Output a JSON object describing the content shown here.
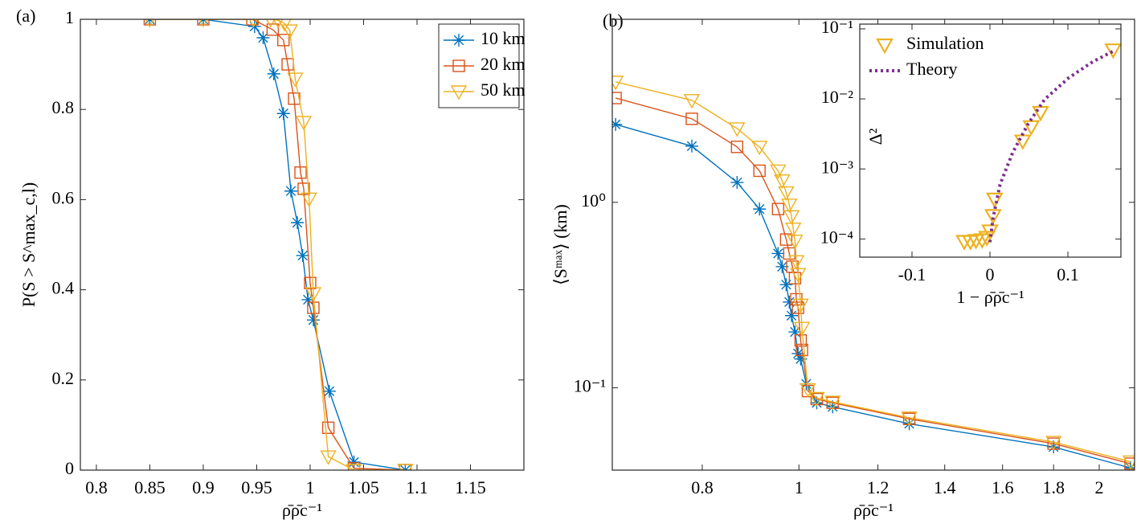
{
  "chart_data": [
    {
      "type": "line",
      "title": "(a)",
      "xlabel": "ρ̄ρ̄c⁻¹",
      "ylabel": "P(S > S^max_c,l)",
      "xlim": [
        0.785,
        1.2
      ],
      "ylim": [
        0,
        1
      ],
      "xticks": [
        0.8,
        0.85,
        0.9,
        0.95,
        1,
        1.05,
        1.1,
        1.15
      ],
      "yticks": [
        0,
        0.2,
        0.4,
        0.6,
        0.8,
        1
      ],
      "legend": "upper right",
      "series": [
        {
          "name": "10 km",
          "color": "#0072bd",
          "marker": "asterisk",
          "linestyle": "solid",
          "x": [
            0.85,
            0.9,
            0.948,
            0.956,
            0.966,
            0.975,
            0.982,
            0.988,
            0.993,
            0.998,
            1.003,
            1.018,
            1.041,
            1.089
          ],
          "values": [
            1,
            1,
            0.984,
            0.959,
            0.879,
            0.791,
            0.619,
            0.549,
            0.476,
            0.378,
            0.333,
            0.175,
            0.018,
            0
          ]
        },
        {
          "name": "20 km",
          "color": "#d95319",
          "marker": "square",
          "linestyle": "solid",
          "x": [
            0.85,
            0.9,
            0.946,
            0.965,
            0.975,
            0.979,
            0.985,
            0.991,
            0.994,
            1.0,
            1.003,
            1.017,
            1.041,
            1.089
          ],
          "values": [
            1,
            1,
            1,
            0.977,
            0.954,
            0.9,
            0.824,
            0.66,
            0.624,
            0.415,
            0.36,
            0.094,
            0.004,
            0
          ]
        },
        {
          "name": "50 km",
          "color": "#edb120",
          "marker": "triangle",
          "linestyle": "solid",
          "x": [
            0.85,
            0.9,
            0.947,
            0.963,
            0.97,
            0.976,
            0.981,
            0.986,
            0.994,
            0.999,
            1.003,
            1.017,
            1.041,
            1.089
          ],
          "values": [
            1,
            1,
            1,
            1,
            0.998,
            0.991,
            0.975,
            0.868,
            0.772,
            0.602,
            0.392,
            0.03,
            0,
            0
          ]
        }
      ]
    },
    {
      "type": "line",
      "title": "(b)",
      "xlabel": "ρ̄ρ̄c⁻¹",
      "ylabel": "⟨Sᵐᵃˣ⟩ (km)",
      "xscale": "log",
      "yscale": "log",
      "xlim": [
        0.65,
        2.17
      ],
      "ylim": [
        0.036,
        9.7
      ],
      "xticks": [
        0.8,
        1,
        1.2,
        1.4,
        1.6,
        1.8,
        2
      ],
      "yticks": [
        {
          "value": 0.1,
          "label": "10⁻¹"
        },
        {
          "value": 1,
          "label": "10⁰"
        }
      ],
      "series": [
        {
          "name": "10 km",
          "color": "#0072bd",
          "marker": "asterisk",
          "linestyle": "solid",
          "x": [
            0.655,
            0.781,
            0.867,
            0.913,
            0.953,
            0.962,
            0.971,
            0.978,
            0.983,
            0.991,
            0.998,
            1.004,
            1.017,
            1.042,
            1.081,
            1.29,
            1.8,
            2.15
          ],
          "values": [
            2.63,
            2.01,
            1.28,
            0.92,
            0.53,
            0.45,
            0.36,
            0.29,
            0.245,
            0.2,
            0.153,
            0.143,
            0.105,
            0.083,
            0.079,
            0.064,
            0.048,
            0.037
          ]
        },
        {
          "name": "20 km",
          "color": "#d95319",
          "marker": "square",
          "linestyle": "solid",
          "x": [
            0.655,
            0.781,
            0.867,
            0.913,
            0.953,
            0.971,
            0.978,
            0.985,
            0.991,
            0.994,
            0.998,
            1.004,
            1.007,
            1.021,
            1.042,
            1.081,
            1.29,
            1.8,
            2.15
          ],
          "values": [
            3.65,
            2.82,
            1.99,
            1.48,
            0.92,
            0.63,
            0.53,
            0.45,
            0.39,
            0.3,
            0.27,
            0.18,
            0.16,
            0.096,
            0.087,
            0.083,
            0.068,
            0.05,
            0.039
          ]
        },
        {
          "name": "50 km",
          "color": "#edb120",
          "marker": "triangle",
          "linestyle": "solid",
          "x": [
            0.655,
            0.781,
            0.867,
            0.913,
            0.953,
            0.962,
            0.971,
            0.978,
            0.983,
            0.987,
            0.991,
            0.994,
            0.998,
            1.004,
            1.007,
            1.021,
            1.042,
            1.081,
            1.29,
            1.8,
            2.15
          ],
          "values": [
            4.46,
            3.55,
            2.5,
            1.99,
            1.48,
            1.31,
            1.13,
            0.97,
            0.84,
            0.72,
            0.62,
            0.48,
            0.41,
            0.28,
            0.21,
            0.098,
            0.088,
            0.084,
            0.069,
            0.051,
            0.04
          ]
        }
      ]
    },
    {
      "type": "line",
      "xlabel": "1 − ρ̄ρ̄c⁻¹",
      "ylabel": "Δ²",
      "yscale": "log",
      "xlim": [
        -0.167,
        0.168
      ],
      "ylim": [
        5.5e-05,
        0.117
      ],
      "xticks": [
        -0.1,
        0,
        0.1
      ],
      "yticks": [
        {
          "value": 0.0001,
          "label": "10⁻⁴"
        },
        {
          "value": 0.001,
          "label": "10⁻³"
        },
        {
          "value": 0.01,
          "label": "10⁻²"
        },
        {
          "value": 0.1,
          "label": "10⁻¹"
        }
      ],
      "legend": "upper left",
      "series": [
        {
          "name": "Simulation",
          "color": "#edb120",
          "marker": "triangle",
          "linestyle": "none",
          "x": [
            -0.033,
            -0.025,
            -0.018,
            -0.01,
            -0.004,
            0,
            0.004,
            0.006,
            0.042,
            0.053,
            0.065,
            0.158
          ],
          "values": [
            9.2e-05,
            9.2e-05,
            9.5e-05,
            9.7e-05,
            0.000105,
            0.00013,
            0.000215,
            0.00037,
            0.0025,
            0.004,
            0.0064,
            0.05
          ]
        },
        {
          "name": "Theory",
          "color": "#7e2f8e",
          "marker": "none",
          "linestyle": "dotted",
          "x": [
            0,
            0.004,
            0.013,
            0.029,
            0.049,
            0.07,
            0.101,
            0.132,
            0.158
          ],
          "values": [
            9e-05,
            0.0002,
            0.0006,
            0.0017,
            0.0044,
            0.0098,
            0.02,
            0.034,
            0.048
          ]
        }
      ]
    }
  ]
}
